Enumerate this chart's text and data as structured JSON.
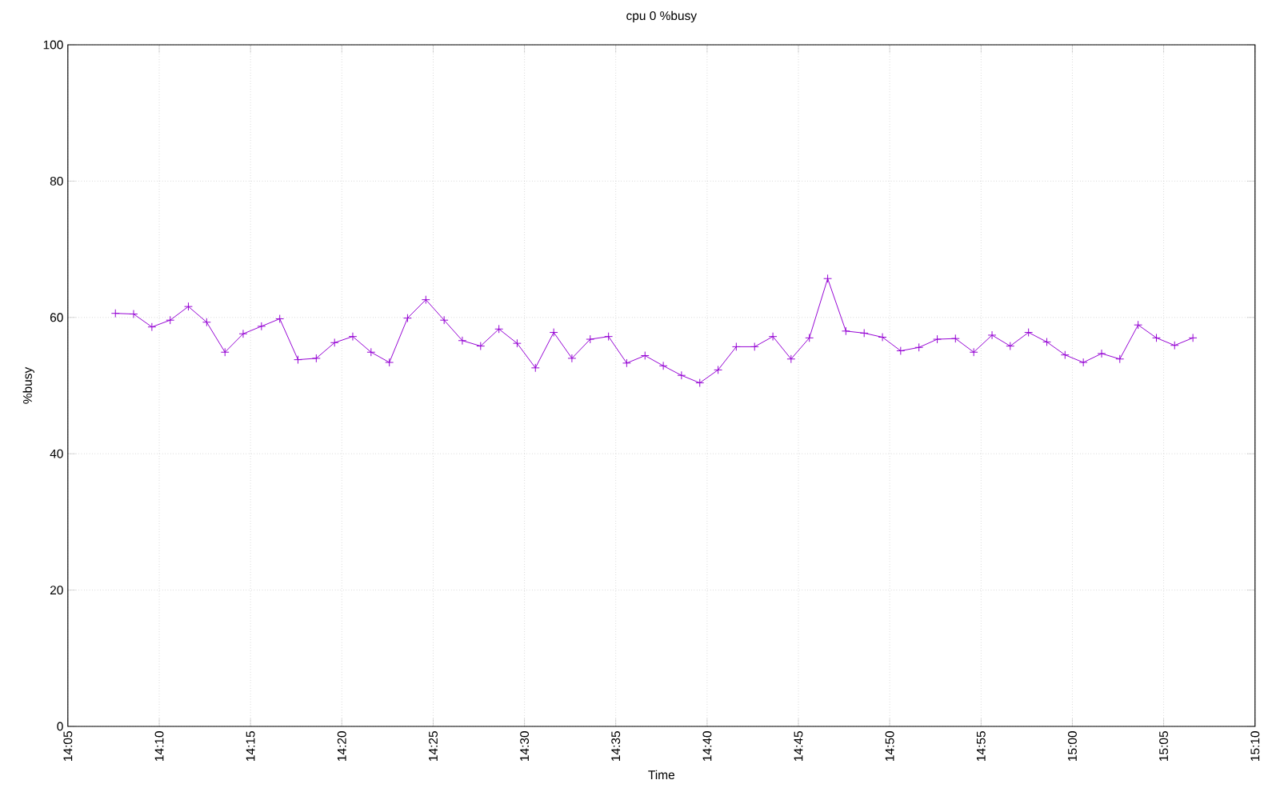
{
  "chart_data": {
    "type": "line",
    "title": "cpu 0 %busy",
    "xlabel": "Time",
    "ylabel": "%busy",
    "x": [
      14.1267,
      14.1433,
      14.16,
      14.1767,
      14.1933,
      14.21,
      14.2267,
      14.2433,
      14.26,
      14.2767,
      14.2933,
      14.31,
      14.3267,
      14.3433,
      14.36,
      14.3767,
      14.3933,
      14.41,
      14.4267,
      14.4433,
      14.46,
      14.4767,
      14.4933,
      14.51,
      14.5267,
      14.5433,
      14.56,
      14.5767,
      14.5933,
      14.61,
      14.6267,
      14.6433,
      14.66,
      14.6767,
      14.6933,
      14.71,
      14.7267,
      14.7433,
      14.76,
      14.7767,
      14.7933,
      14.81,
      14.8267,
      14.8433,
      14.86,
      14.8767,
      14.8933,
      14.91,
      14.9267,
      14.9433,
      14.96,
      14.9767,
      14.9933,
      15.01,
      15.0267,
      15.0433,
      15.06,
      15.0767,
      15.0933,
      15.11
    ],
    "series": [
      {
        "color": "#9400d3",
        "values": [
          60.6,
          60.5,
          58.6,
          59.6,
          61.6,
          59.3,
          54.9,
          57.6,
          58.7,
          59.8,
          53.8,
          54.0,
          56.3,
          57.2,
          54.9,
          53.4,
          59.9,
          62.6,
          59.6,
          56.6,
          55.8,
          58.3,
          56.2,
          52.6,
          57.8,
          54.0,
          56.8,
          57.2,
          53.3,
          54.4,
          52.9,
          51.5,
          50.4,
          52.3,
          55.7,
          55.7,
          57.2,
          53.9,
          57.0,
          65.7,
          58.0,
          57.7,
          57.1,
          55.1,
          55.6,
          56.8,
          56.9,
          54.9,
          57.4,
          55.8,
          57.8,
          56.4,
          54.5,
          53.4,
          54.7,
          53.9,
          58.9,
          57.0,
          55.9,
          57.0
        ]
      }
    ],
    "xlim": [
      14.0833,
      15.1667
    ],
    "xticks": [
      {
        "value": 14.0833,
        "label": "14:05"
      },
      {
        "value": 14.1667,
        "label": "14:10"
      },
      {
        "value": 14.25,
        "label": "14:15"
      },
      {
        "value": 14.3333,
        "label": "14:20"
      },
      {
        "value": 14.4167,
        "label": "14:25"
      },
      {
        "value": 14.5,
        "label": "14:30"
      },
      {
        "value": 14.5833,
        "label": "14:35"
      },
      {
        "value": 14.6667,
        "label": "14:40"
      },
      {
        "value": 14.75,
        "label": "14:45"
      },
      {
        "value": 14.8333,
        "label": "14:50"
      },
      {
        "value": 14.9167,
        "label": "14:55"
      },
      {
        "value": 15.0,
        "label": "15:00"
      },
      {
        "value": 15.0833,
        "label": "15:05"
      },
      {
        "value": 15.1667,
        "label": "15:10"
      }
    ],
    "ylim": [
      0,
      100
    ],
    "yticks": [
      0,
      20,
      40,
      60,
      80,
      100
    ],
    "grid": true,
    "marker": "cross",
    "line_style": "solid"
  }
}
